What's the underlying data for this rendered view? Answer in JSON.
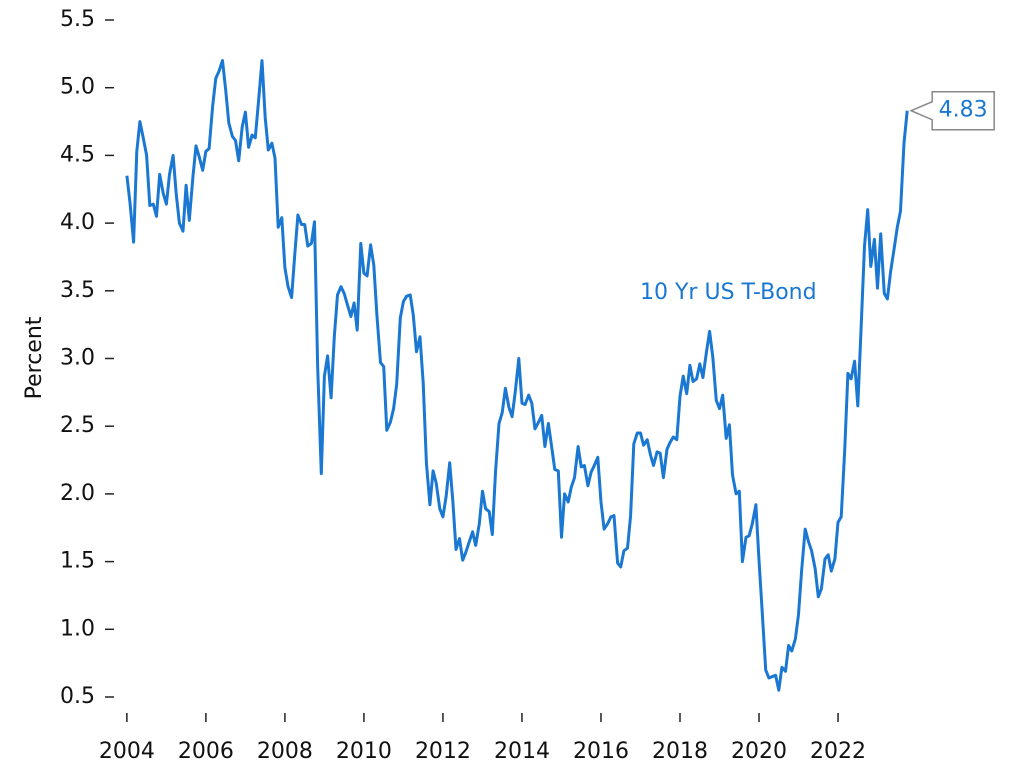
{
  "chart_data": {
    "type": "line",
    "annotation": "10 Yr US T-Bond",
    "y_label": "Percent",
    "x": [
      2004.0,
      2004.08,
      2004.17,
      2004.25,
      2004.33,
      2004.42,
      2004.5,
      2004.58,
      2004.67,
      2004.75,
      2004.83,
      2004.92,
      2005.0,
      2005.08,
      2005.17,
      2005.25,
      2005.33,
      2005.42,
      2005.5,
      2005.58,
      2005.67,
      2005.75,
      2005.83,
      2005.92,
      2006.0,
      2006.08,
      2006.17,
      2006.25,
      2006.33,
      2006.42,
      2006.5,
      2006.58,
      2006.67,
      2006.75,
      2006.83,
      2006.92,
      2007.0,
      2007.08,
      2007.17,
      2007.25,
      2007.33,
      2007.42,
      2007.5,
      2007.58,
      2007.67,
      2007.75,
      2007.83,
      2007.92,
      2008.0,
      2008.08,
      2008.17,
      2008.25,
      2008.33,
      2008.42,
      2008.5,
      2008.58,
      2008.67,
      2008.75,
      2008.83,
      2008.92,
      2009.0,
      2009.08,
      2009.17,
      2009.25,
      2009.33,
      2009.42,
      2009.5,
      2009.58,
      2009.67,
      2009.75,
      2009.83,
      2009.92,
      2010.0,
      2010.08,
      2010.17,
      2010.25,
      2010.33,
      2010.42,
      2010.5,
      2010.58,
      2010.67,
      2010.75,
      2010.83,
      2010.92,
      2011.0,
      2011.08,
      2011.17,
      2011.25,
      2011.33,
      2011.42,
      2011.5,
      2011.58,
      2011.67,
      2011.75,
      2011.83,
      2011.92,
      2012.0,
      2012.08,
      2012.17,
      2012.25,
      2012.33,
      2012.42,
      2012.5,
      2012.58,
      2012.67,
      2012.75,
      2012.83,
      2012.92,
      2013.0,
      2013.08,
      2013.17,
      2013.25,
      2013.33,
      2013.42,
      2013.5,
      2013.58,
      2013.67,
      2013.75,
      2013.83,
      2013.92,
      2014.0,
      2014.08,
      2014.17,
      2014.25,
      2014.33,
      2014.42,
      2014.5,
      2014.58,
      2014.67,
      2014.75,
      2014.83,
      2014.92,
      2015.0,
      2015.08,
      2015.17,
      2015.25,
      2015.33,
      2015.42,
      2015.5,
      2015.58,
      2015.67,
      2015.75,
      2015.83,
      2015.92,
      2016.0,
      2016.08,
      2016.17,
      2016.25,
      2016.33,
      2016.42,
      2016.5,
      2016.58,
      2016.67,
      2016.75,
      2016.83,
      2016.92,
      2017.0,
      2017.08,
      2017.17,
      2017.25,
      2017.33,
      2017.42,
      2017.5,
      2017.58,
      2017.67,
      2017.75,
      2017.83,
      2017.92,
      2018.0,
      2018.08,
      2018.17,
      2018.25,
      2018.33,
      2018.42,
      2018.5,
      2018.58,
      2018.67,
      2018.75,
      2018.83,
      2018.92,
      2019.0,
      2019.08,
      2019.17,
      2019.25,
      2019.33,
      2019.42,
      2019.5,
      2019.58,
      2019.67,
      2019.75,
      2019.83,
      2019.92,
      2020.0,
      2020.08,
      2020.17,
      2020.25,
      2020.33,
      2020.42,
      2020.5,
      2020.58,
      2020.67,
      2020.75,
      2020.83,
      2020.92,
      2021.0,
      2021.08,
      2021.17,
      2021.25,
      2021.33,
      2021.42,
      2021.5,
      2021.58,
      2021.67,
      2021.75,
      2021.83,
      2021.92,
      2022.0,
      2022.08,
      2022.17,
      2022.25,
      2022.33,
      2022.42,
      2022.5,
      2022.58,
      2022.67,
      2022.75,
      2022.83,
      2022.92,
      2023.0,
      2023.08,
      2023.17,
      2023.25,
      2023.33,
      2023.42,
      2023.5,
      2023.58,
      2023.67,
      2023.75
    ],
    "series": [
      {
        "color": "#1a78d2",
        "values": [
          4.35,
          4.15,
          3.86,
          4.53,
          4.75,
          4.62,
          4.5,
          4.13,
          4.14,
          4.05,
          4.36,
          4.22,
          4.14,
          4.36,
          4.5,
          4.21,
          4.0,
          3.94,
          4.28,
          4.02,
          4.34,
          4.57,
          4.49,
          4.39,
          4.53,
          4.55,
          4.86,
          5.07,
          5.12,
          5.2,
          4.99,
          4.74,
          4.64,
          4.61,
          4.46,
          4.71,
          4.82,
          4.56,
          4.65,
          4.63,
          4.89,
          5.2,
          4.78,
          4.54,
          4.59,
          4.48,
          3.97,
          4.04,
          3.67,
          3.53,
          3.45,
          3.77,
          4.06,
          3.99,
          3.99,
          3.83,
          3.85,
          4.01,
          2.93,
          2.15,
          2.87,
          3.02,
          2.71,
          3.16,
          3.47,
          3.53,
          3.48,
          3.4,
          3.31,
          3.41,
          3.21,
          3.85,
          3.63,
          3.61,
          3.84,
          3.69,
          3.31,
          2.97,
          2.94,
          2.47,
          2.53,
          2.63,
          2.81,
          3.3,
          3.42,
          3.46,
          3.47,
          3.32,
          3.05,
          3.16,
          2.82,
          2.23,
          1.92,
          2.17,
          2.08,
          1.89,
          1.83,
          1.98,
          2.23,
          1.95,
          1.59,
          1.67,
          1.51,
          1.57,
          1.65,
          1.72,
          1.62,
          1.78,
          2.02,
          1.89,
          1.87,
          1.7,
          2.16,
          2.52,
          2.6,
          2.78,
          2.64,
          2.57,
          2.75,
          3.0,
          2.67,
          2.66,
          2.73,
          2.67,
          2.48,
          2.53,
          2.58,
          2.35,
          2.52,
          2.35,
          2.18,
          2.17,
          1.68,
          2.0,
          1.94,
          2.05,
          2.12,
          2.35,
          2.2,
          2.21,
          2.06,
          2.16,
          2.21,
          2.27,
          1.94,
          1.74,
          1.78,
          1.83,
          1.84,
          1.49,
          1.46,
          1.58,
          1.6,
          1.84,
          2.37,
          2.45,
          2.45,
          2.36,
          2.4,
          2.29,
          2.21,
          2.31,
          2.3,
          2.12,
          2.33,
          2.38,
          2.42,
          2.4,
          2.72,
          2.87,
          2.74,
          2.95,
          2.83,
          2.85,
          2.96,
          2.86,
          3.05,
          3.2,
          3.01,
          2.69,
          2.63,
          2.73,
          2.41,
          2.51,
          2.14,
          2.0,
          2.02,
          1.5,
          1.68,
          1.69,
          1.78,
          1.92,
          1.51,
          1.13,
          0.7,
          0.64,
          0.65,
          0.66,
          0.55,
          0.72,
          0.69,
          0.88,
          0.84,
          0.93,
          1.11,
          1.44,
          1.74,
          1.65,
          1.58,
          1.45,
          1.24,
          1.3,
          1.52,
          1.55,
          1.43,
          1.52,
          1.79,
          1.83,
          2.32,
          2.89,
          2.85,
          2.98,
          2.65,
          3.19,
          3.83,
          4.1,
          3.68,
          3.88,
          3.52,
          3.92,
          3.48,
          3.44,
          3.64,
          3.81,
          3.97,
          4.09,
          4.59,
          4.83
        ]
      }
    ],
    "xlim": [
      2003.75,
      2024.1
    ],
    "xticks": [
      2004,
      2006,
      2008,
      2010,
      2012,
      2014,
      2016,
      2018,
      2020,
      2022
    ],
    "ylim": [
      0.5,
      5.5
    ],
    "yticks": [
      {
        "value": 0.5,
        "label": "0.5"
      },
      {
        "value": 1,
        "label": "1.0"
      },
      {
        "value": 1.5,
        "label": "1.5"
      },
      {
        "value": 2,
        "label": "2.0"
      },
      {
        "value": 2.5,
        "label": "2.5"
      },
      {
        "value": 3,
        "label": "3.0"
      },
      {
        "value": 3.5,
        "label": "3.5"
      },
      {
        "value": 4,
        "label": "4.0"
      },
      {
        "value": 4.5,
        "label": "4.5"
      },
      {
        "value": 5,
        "label": "5.0"
      },
      {
        "value": 5.5,
        "label": "5.5"
      }
    ],
    "grid": false
  }
}
